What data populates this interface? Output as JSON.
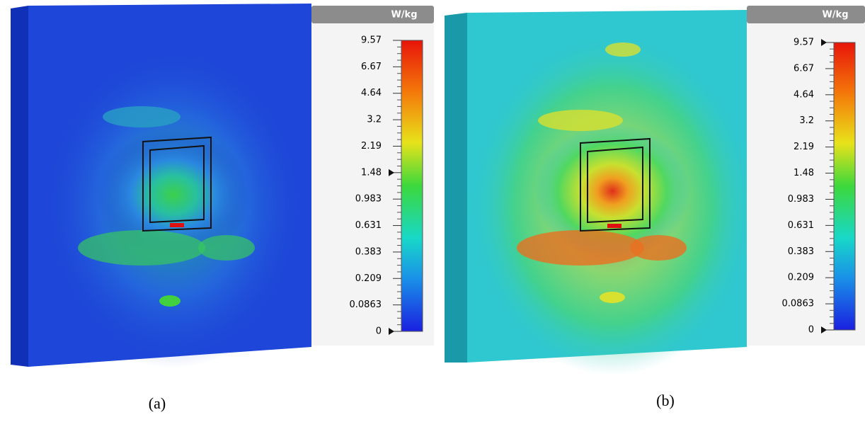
{
  "panels": [
    {
      "unit": "W/kg",
      "ticks": [
        "9.57",
        "6.67",
        "4.64",
        "3.2",
        "2.19",
        "1.48",
        "0.983",
        "0.631",
        "0.383",
        "0.209",
        "0.0863",
        "0"
      ],
      "caption": "(a)"
    },
    {
      "unit": "W/kg",
      "ticks": [
        "9.57",
        "6.67",
        "4.64",
        "3.2",
        "2.19",
        "1.48",
        "0.983",
        "0.631",
        "0.383",
        "0.209",
        "0.0863",
        "0"
      ],
      "caption": "(b)"
    }
  ]
}
